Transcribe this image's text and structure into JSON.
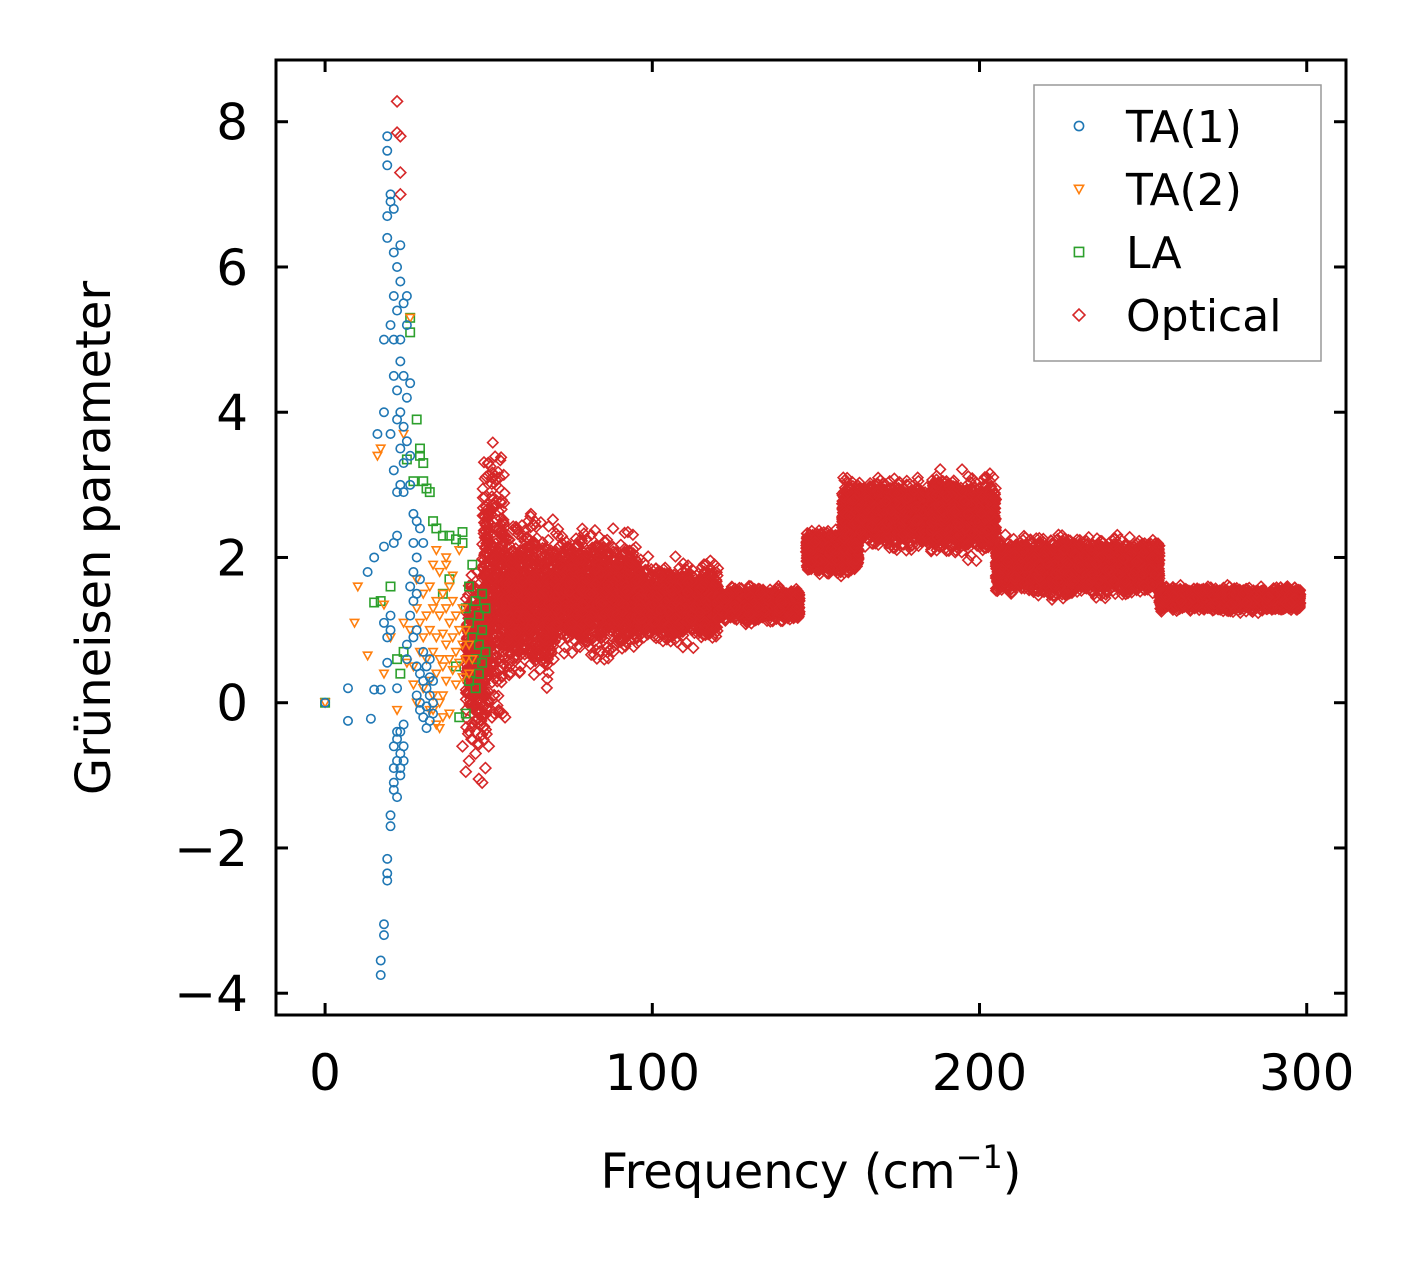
{
  "chart_data": {
    "type": "scatter",
    "title": "",
    "xlabel": "Frequency (cm",
    "xlabel_sup": "−1",
    "xlabel_close": ")",
    "ylabel": "Grüneisen parameter",
    "xlim": [
      -15,
      312
    ],
    "ylim": [
      -4.3,
      8.85
    ],
    "xticks": [
      0,
      100,
      200,
      300
    ],
    "xtick_labels": [
      "0",
      "100",
      "200",
      "300"
    ],
    "yticks": [
      -4,
      -2,
      0,
      2,
      4,
      6,
      8
    ],
    "ytick_labels": [
      "−4",
      "−2",
      "0",
      "2",
      "4",
      "6",
      "8"
    ],
    "grid": false,
    "legend_position": "top-right",
    "series": [
      {
        "name": "TA(1)",
        "marker": "circle",
        "color": "#1f77b4",
        "points": [
          [
            0,
            0
          ],
          [
            7,
            0.2
          ],
          [
            7,
            -0.25
          ],
          [
            14,
            -0.22
          ],
          [
            15,
            0.18
          ],
          [
            13,
            1.8
          ],
          [
            15,
            2.0
          ],
          [
            16,
            3.7
          ],
          [
            17,
            0.18
          ],
          [
            17,
            -3.55
          ],
          [
            17,
            -3.75
          ],
          [
            18,
            -3.2
          ],
          [
            18,
            -3.05
          ],
          [
            18,
            2.15
          ],
          [
            18,
            1.1
          ],
          [
            18,
            5.0
          ],
          [
            18,
            4.0
          ],
          [
            19,
            6.4
          ],
          [
            19,
            6.7
          ],
          [
            19,
            7.8
          ],
          [
            19,
            7.6
          ],
          [
            19,
            7.4
          ],
          [
            19,
            -2.15
          ],
          [
            19,
            -2.45
          ],
          [
            19,
            -2.35
          ],
          [
            19,
            0.55
          ],
          [
            19,
            0.9
          ],
          [
            20,
            7.0
          ],
          [
            20,
            6.9
          ],
          [
            20,
            5.2
          ],
          [
            20,
            3.7
          ],
          [
            20,
            1.2
          ],
          [
            20,
            1.0
          ],
          [
            20,
            -1.7
          ],
          [
            20,
            -1.55
          ],
          [
            21,
            6.8
          ],
          [
            21,
            6.2
          ],
          [
            21,
            5.6
          ],
          [
            21,
            5.0
          ],
          [
            21,
            4.5
          ],
          [
            21,
            3.2
          ],
          [
            21,
            2.2
          ],
          [
            21,
            -1.2
          ],
          [
            21,
            -0.9
          ],
          [
            22,
            6.0
          ],
          [
            22,
            5.4
          ],
          [
            22,
            4.3
          ],
          [
            22,
            3.9
          ],
          [
            22,
            2.9
          ],
          [
            22,
            2.3
          ],
          [
            22,
            0.2
          ],
          [
            22,
            -0.8
          ],
          [
            22,
            -0.5
          ],
          [
            23,
            6.3
          ],
          [
            23,
            5.8
          ],
          [
            23,
            5.0
          ],
          [
            23,
            4.7
          ],
          [
            23,
            4.0
          ],
          [
            23,
            3.5
          ],
          [
            23,
            3.0
          ],
          [
            23,
            -0.4
          ],
          [
            23,
            -0.7
          ],
          [
            23,
            -1.0
          ],
          [
            24,
            5.5
          ],
          [
            24,
            4.5
          ],
          [
            24,
            3.8
          ],
          [
            24,
            3.3
          ],
          [
            24,
            2.9
          ],
          [
            24,
            -0.3
          ],
          [
            24,
            -0.6
          ],
          [
            25,
            5.6
          ],
          [
            25,
            5.2
          ],
          [
            25,
            4.2
          ],
          [
            25,
            3.6
          ],
          [
            25,
            0.8
          ],
          [
            25,
            0.6
          ],
          [
            26,
            4.4
          ],
          [
            26,
            3.4
          ],
          [
            26,
            3.0
          ],
          [
            26,
            1.6
          ],
          [
            26,
            1.2
          ],
          [
            27,
            2.6
          ],
          [
            27,
            2.2
          ],
          [
            27,
            1.8
          ],
          [
            27,
            1.4
          ],
          [
            27,
            0.9
          ],
          [
            28,
            2.5
          ],
          [
            28,
            2.0
          ],
          [
            28,
            1.5
          ],
          [
            28,
            1.0
          ],
          [
            28,
            0.5
          ],
          [
            28,
            0.1
          ],
          [
            29,
            2.4
          ],
          [
            29,
            1.7
          ],
          [
            29,
            0.4
          ],
          [
            29,
            0.0
          ],
          [
            29,
            -0.1
          ],
          [
            30,
            2.2
          ],
          [
            30,
            0.7
          ],
          [
            30,
            0.3
          ],
          [
            30,
            -0.2
          ],
          [
            31,
            0.5
          ],
          [
            31,
            0.2
          ],
          [
            31,
            -0.05
          ],
          [
            31,
            -0.35
          ],
          [
            32,
            0.6
          ],
          [
            32,
            0.35
          ],
          [
            32,
            0.1
          ],
          [
            32,
            -0.25
          ],
          [
            33,
            0.3
          ],
          [
            33,
            0.0
          ],
          [
            33,
            -0.15
          ],
          [
            21,
            -1.1
          ],
          [
            22,
            -1.3
          ],
          [
            23,
            -0.9
          ],
          [
            24,
            -0.8
          ],
          [
            21,
            -0.6
          ],
          [
            22,
            -0.4
          ]
        ]
      },
      {
        "name": "TA(2)",
        "marker": "triangle-down",
        "color": "#ff7f0e",
        "points": [
          [
            0,
            0
          ],
          [
            10,
            1.6
          ],
          [
            9,
            1.1
          ],
          [
            13,
            0.65
          ],
          [
            16,
            3.4
          ],
          [
            17,
            3.5
          ],
          [
            18,
            0.4
          ],
          [
            18,
            1.35
          ],
          [
            20,
            0.9
          ],
          [
            22,
            -0.1
          ],
          [
            24,
            3.7
          ],
          [
            24,
            1.1
          ],
          [
            25,
            0.55
          ],
          [
            26,
            5.3
          ],
          [
            26,
            1.0
          ],
          [
            27,
            0.5
          ],
          [
            27,
            0.25
          ],
          [
            28,
            1.7
          ],
          [
            28,
            1.3
          ],
          [
            28,
            0.0
          ],
          [
            29,
            1.1
          ],
          [
            29,
            0.7
          ],
          [
            30,
            1.5
          ],
          [
            30,
            0.9
          ],
          [
            30,
            0.2
          ],
          [
            31,
            1.2
          ],
          [
            31,
            0.6
          ],
          [
            32,
            1.6
          ],
          [
            32,
            1.0
          ],
          [
            32,
            0.3
          ],
          [
            32,
            -0.1
          ],
          [
            33,
            1.9
          ],
          [
            33,
            1.3
          ],
          [
            33,
            0.7
          ],
          [
            33,
            0.1
          ],
          [
            34,
            2.1
          ],
          [
            34,
            1.4
          ],
          [
            34,
            0.9
          ],
          [
            34,
            0.4
          ],
          [
            34,
            -0.3
          ],
          [
            35,
            1.8
          ],
          [
            35,
            1.2
          ],
          [
            35,
            0.6
          ],
          [
            35,
            0.0
          ],
          [
            36,
            1.5
          ],
          [
            36,
            0.95
          ],
          [
            36,
            0.5
          ],
          [
            36,
            0.1
          ],
          [
            37,
            1.9
          ],
          [
            37,
            1.3
          ],
          [
            37,
            0.8
          ],
          [
            37,
            0.3
          ],
          [
            38,
            1.6
          ],
          [
            38,
            1.1
          ],
          [
            38,
            0.6
          ],
          [
            39,
            1.4
          ],
          [
            39,
            0.9
          ],
          [
            39,
            0.45
          ],
          [
            40,
            1.2
          ],
          [
            40,
            0.7
          ],
          [
            40,
            0.25
          ],
          [
            41,
            2.1
          ],
          [
            41,
            1.0
          ],
          [
            41,
            0.55
          ],
          [
            42,
            1.3
          ],
          [
            42,
            0.8
          ],
          [
            42,
            0.35
          ],
          [
            43,
            1.0
          ],
          [
            43,
            0.6
          ],
          [
            44,
            0.8
          ],
          [
            44,
            0.4
          ],
          [
            45,
            0.6
          ],
          [
            35,
            -0.35
          ],
          [
            36,
            -0.2
          ],
          [
            38,
            -0.15
          ],
          [
            33,
            -0.1
          ],
          [
            39,
            1.75
          ],
          [
            37,
            2.0
          ]
        ]
      },
      {
        "name": "LA",
        "marker": "square",
        "color": "#2ca02c",
        "points": [
          [
            0,
            0
          ],
          [
            15,
            1.38
          ],
          [
            17,
            1.4
          ],
          [
            20,
            1.6
          ],
          [
            22,
            0.6
          ],
          [
            23,
            0.4
          ],
          [
            24,
            0.7
          ],
          [
            25,
            3.35
          ],
          [
            26,
            5.3
          ],
          [
            26,
            5.1
          ],
          [
            27,
            3.05
          ],
          [
            28,
            3.9
          ],
          [
            29,
            3.5
          ],
          [
            29,
            3.4
          ],
          [
            30,
            3.3
          ],
          [
            30,
            3.05
          ],
          [
            31,
            2.95
          ],
          [
            32,
            2.9
          ],
          [
            33,
            2.5
          ],
          [
            34,
            2.4
          ],
          [
            36,
            2.3
          ],
          [
            38,
            2.3
          ],
          [
            40,
            2.25
          ],
          [
            42,
            2.2
          ],
          [
            42,
            2.35
          ],
          [
            44,
            1.6
          ],
          [
            44,
            1.1
          ],
          [
            45,
            1.9
          ],
          [
            45,
            0.9
          ],
          [
            46,
            1.4
          ],
          [
            46,
            0.6
          ],
          [
            46,
            0.2
          ],
          [
            47,
            1.2
          ],
          [
            47,
            0.8
          ],
          [
            47,
            0.4
          ],
          [
            48,
            1.5
          ],
          [
            48,
            1.0
          ],
          [
            48,
            0.55
          ],
          [
            49,
            1.3
          ],
          [
            49,
            0.7
          ],
          [
            36,
            1.5
          ],
          [
            38,
            1.7
          ],
          [
            40,
            0.5
          ],
          [
            43,
            1.3
          ],
          [
            44,
            0.3
          ],
          [
            43,
            -0.15
          ],
          [
            41,
            -0.2
          ]
        ]
      },
      {
        "name": "Optical",
        "marker": "diamond",
        "color": "#d62728",
        "points": [
          [
            22,
            8.28
          ],
          [
            22,
            7.85
          ],
          [
            23,
            7.8
          ],
          [
            23,
            7.3
          ],
          [
            23,
            7.0
          ],
          [
            42,
            -0.6
          ],
          [
            43,
            -0.95
          ],
          [
            44,
            -0.8
          ],
          [
            45,
            -0.5
          ],
          [
            46,
            -0.7
          ],
          [
            47,
            -1.05
          ],
          [
            48,
            -1.1
          ],
          [
            49,
            -0.9
          ],
          [
            50,
            -0.6
          ],
          [
            51,
            -0.2
          ],
          [
            55,
            -0.2
          ],
          [
            120,
            1.85
          ]
        ],
        "bands": [
          {
            "x": [
              43,
              50
            ],
            "ylow": -0.6,
            "yhigh": 1.9
          },
          {
            "x": [
              48,
              55
            ],
            "ylow": -0.5,
            "yhigh": 3.6
          },
          {
            "x": [
              55,
              70
            ],
            "ylow": 0.2,
            "yhigh": 2.6
          },
          {
            "x": [
              70,
              95
            ],
            "ylow": 0.6,
            "yhigh": 2.4
          },
          {
            "x": [
              95,
              120
            ],
            "ylow": 0.8,
            "yhigh": 1.95
          },
          {
            "x": [
              120,
              145
            ],
            "ylow": 1.1,
            "yhigh": 1.6
          },
          {
            "x": [
              147,
              163
            ],
            "ylow": 1.75,
            "yhigh": 2.4
          },
          {
            "x": [
              158,
              190
            ],
            "ylow": 2.1,
            "yhigh": 3.1
          },
          {
            "x": [
              185,
              205
            ],
            "ylow": 2.0,
            "yhigh": 3.15
          },
          {
            "x": [
              205,
              255
            ],
            "ylow": 1.45,
            "yhigh": 2.3
          },
          {
            "x": [
              255,
              298
            ],
            "ylow": 1.25,
            "yhigh": 1.6
          }
        ]
      }
    ],
    "legend": [
      "TA(1)",
      "TA(2)",
      "LA",
      "Optical"
    ]
  }
}
